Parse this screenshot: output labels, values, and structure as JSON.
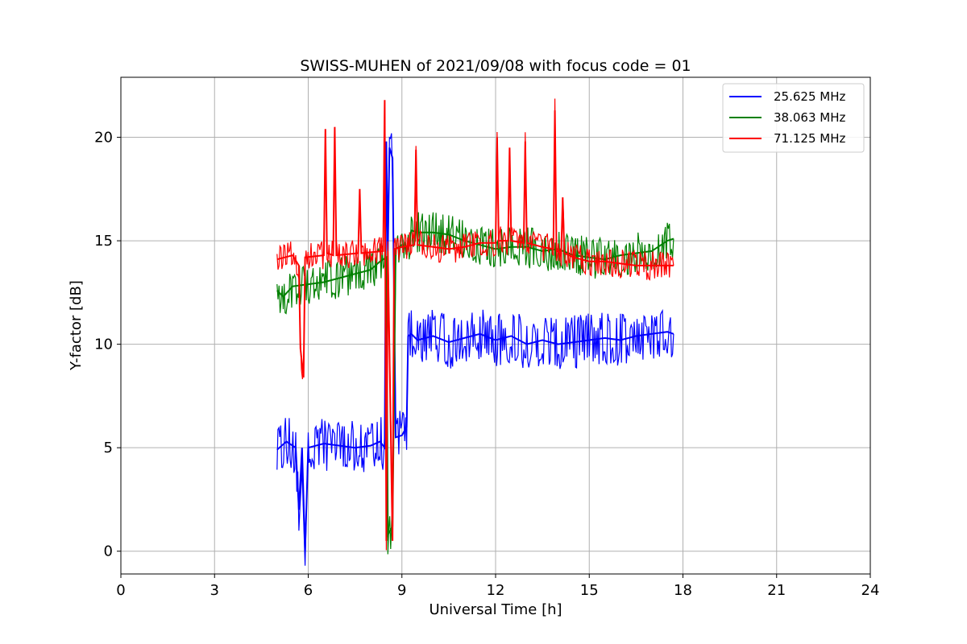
{
  "chart_data": {
    "type": "line",
    "title": "SWISS-MUHEN of 2021/09/08 with focus code = 01",
    "xlabel": "Universal Time [h]",
    "ylabel": "Y-factor [dB]",
    "xlim": [
      0,
      24
    ],
    "ylim": [
      -1.1,
      22.9
    ],
    "xticks": [
      0,
      3,
      6,
      9,
      12,
      15,
      18,
      21,
      24
    ],
    "yticks": [
      0,
      5,
      10,
      15,
      20
    ],
    "grid": true,
    "legend_position": "top-right",
    "series": [
      {
        "name": "25.625 MHz",
        "color": "#0000ff",
        "x": [
          5.0,
          5.3,
          5.6,
          5.7,
          5.8,
          5.9,
          6.0,
          6.5,
          7.0,
          7.5,
          8.0,
          8.3,
          8.45,
          8.5,
          8.55,
          8.6,
          8.7,
          8.8,
          9.0,
          9.15,
          9.2,
          9.3,
          9.5,
          10.0,
          10.5,
          11.0,
          11.5,
          12.0,
          12.5,
          13.0,
          13.5,
          14.0,
          14.5,
          15.0,
          15.5,
          16.0,
          16.5,
          17.0,
          17.5,
          17.7
        ],
        "y": [
          4.9,
          5.3,
          5.0,
          2.0,
          5.0,
          0.0,
          5.0,
          5.2,
          5.1,
          5.0,
          5.1,
          5.3,
          5.0,
          19.8,
          14.5,
          19.5,
          19.0,
          5.5,
          5.6,
          6.0,
          10.4,
          10.5,
          10.2,
          10.4,
          10.1,
          10.3,
          10.5,
          10.2,
          10.4,
          10.0,
          10.2,
          10.0,
          10.1,
          10.2,
          10.3,
          10.2,
          10.4,
          10.5,
          10.6,
          10.5
        ],
        "band": 1.3
      },
      {
        "name": "38.063 MHz",
        "color": "#008000",
        "x": [
          5.0,
          5.2,
          5.5,
          6.0,
          6.5,
          7.0,
          7.5,
          8.0,
          8.3,
          8.5,
          8.55,
          8.7,
          8.8,
          9.0,
          9.2,
          9.3,
          9.5,
          10.0,
          10.5,
          11.0,
          11.5,
          12.0,
          12.5,
          13.0,
          13.5,
          14.0,
          14.5,
          15.0,
          15.5,
          16.0,
          16.5,
          17.0,
          17.5,
          17.7
        ],
        "y": [
          12.6,
          12.3,
          12.8,
          12.9,
          13.0,
          13.2,
          13.4,
          13.6,
          14.0,
          14.2,
          0.8,
          1.2,
          14.6,
          14.8,
          14.6,
          15.5,
          15.4,
          15.4,
          15.3,
          15.0,
          14.8,
          14.6,
          14.7,
          14.7,
          14.5,
          14.6,
          14.3,
          14.2,
          14.1,
          14.3,
          14.4,
          14.5,
          15.0,
          15.1
        ],
        "band": 1.0
      },
      {
        "name": "71.125 MHz",
        "color": "#ff0000",
        "x": [
          5.0,
          5.5,
          5.7,
          5.75,
          5.85,
          5.9,
          6.5,
          6.55,
          6.6,
          6.8,
          6.85,
          6.9,
          7.6,
          7.65,
          7.7,
          8.4,
          8.45,
          8.5,
          8.55,
          8.7,
          8.75,
          9.0,
          9.4,
          9.45,
          9.5,
          10.0,
          10.5,
          11.0,
          11.5,
          12.0,
          12.05,
          12.1,
          12.4,
          12.45,
          12.5,
          12.9,
          12.95,
          13.0,
          13.5,
          13.85,
          13.9,
          13.95,
          14.1,
          14.15,
          14.2,
          14.5,
          15.0,
          15.5,
          16.0,
          16.5,
          17.0,
          17.5,
          17.7
        ],
        "y": [
          14.1,
          14.3,
          13.8,
          9.8,
          8.4,
          14.2,
          14.3,
          20.4,
          14.4,
          14.3,
          20.5,
          14.3,
          14.4,
          17.5,
          14.4,
          14.5,
          21.8,
          0.5,
          14.5,
          0.5,
          14.6,
          14.7,
          14.8,
          19.4,
          14.8,
          14.7,
          14.6,
          14.7,
          14.9,
          14.9,
          20.0,
          15.0,
          15.0,
          19.5,
          15.0,
          14.9,
          19.8,
          14.9,
          14.7,
          14.6,
          21.3,
          14.5,
          14.4,
          17.1,
          14.4,
          14.2,
          14.0,
          14.0,
          13.9,
          13.8,
          13.8,
          13.8,
          13.8
        ],
        "band": 0.7
      }
    ]
  }
}
